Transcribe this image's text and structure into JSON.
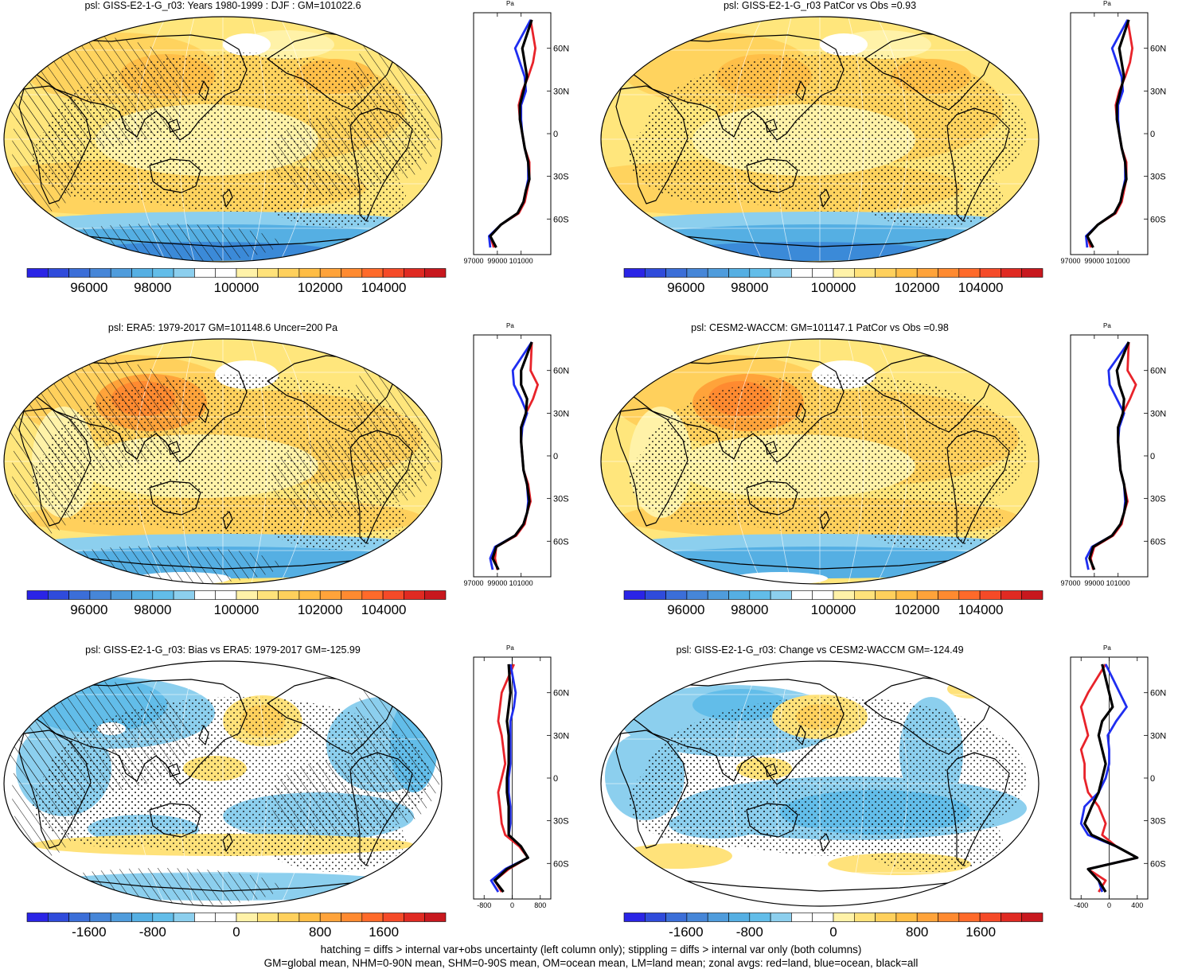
{
  "colors": {
    "abs_scale": [
      "#2a24e6",
      "#2f4bdb",
      "#3b6ed8",
      "#4686d8",
      "#4f9cdc",
      "#55afe3",
      "#62bde9",
      "#8ccfee",
      "#ffffff",
      "#ffffff",
      "#fff2a8",
      "#ffe27a",
      "#ffd05c",
      "#ffbd45",
      "#ffa33a",
      "#ff8a30",
      "#ff6a2a",
      "#f54a28",
      "#e02a22",
      "#c8181e"
    ],
    "diff_scale": [
      "#2a24e6",
      "#2f4bdb",
      "#3b6ed8",
      "#4686d8",
      "#4f9cdc",
      "#55afe3",
      "#62bde9",
      "#8ccfee",
      "#ffffff",
      "#ffffff",
      "#fff2a8",
      "#ffe27a",
      "#ffd05c",
      "#ffbd45",
      "#ffa33a",
      "#ff8a30",
      "#ff6a2a",
      "#f54a28",
      "#e02a22",
      "#c8181e"
    ],
    "land": "#e8232a",
    "ocean": "#1f2ef0",
    "all": "#000000"
  },
  "panels": [
    {
      "title": "psl: GISS-E2-1-G_r03: Years 1980-1999 : DJF : GM=101022.6",
      "map_style": "abs",
      "hatching": true,
      "colorbar": {
        "scale": "abs",
        "labels": [
          "96000",
          "98000",
          "100000",
          "102000",
          "104000"
        ]
      },
      "zonal": {
        "unit": "Pa",
        "xticks": [
          "97000",
          "99000",
          "101000"
        ],
        "yticks": [
          "60N",
          "30N",
          "0",
          "30S",
          "60S"
        ]
      }
    },
    {
      "title": "psl: GISS-E2-1-G_r03 PatCor vs Obs =0.93",
      "map_style": "abs",
      "hatching": false,
      "colorbar": {
        "scale": "abs",
        "labels": [
          "96000",
          "98000",
          "100000",
          "102000",
          "104000"
        ]
      },
      "zonal": {
        "unit": "Pa",
        "xticks": [
          "97000",
          "99000",
          "101000"
        ],
        "yticks": [
          "60N",
          "30N",
          "0",
          "30S",
          "60S"
        ]
      }
    },
    {
      "title": "psl: ERA5: 1979-2017 GM=101148.6 Uncer=200 Pa",
      "map_style": "abs_obs",
      "hatching": true,
      "colorbar": {
        "scale": "abs",
        "labels": [
          "96000",
          "98000",
          "100000",
          "102000",
          "104000"
        ]
      },
      "zonal": {
        "unit": "Pa",
        "xticks": [
          "97000",
          "99000",
          "101000"
        ],
        "yticks": [
          "60N",
          "30N",
          "0",
          "30S",
          "60S"
        ]
      }
    },
    {
      "title": "psl: CESM2-WACCM: GM=101147.1 PatCor vs Obs =0.98",
      "map_style": "abs_obs",
      "hatching": false,
      "colorbar": {
        "scale": "abs",
        "labels": [
          "96000",
          "98000",
          "100000",
          "102000",
          "104000"
        ]
      },
      "zonal": {
        "unit": "Pa",
        "xticks": [
          "97000",
          "99000",
          "101000"
        ],
        "yticks": [
          "60N",
          "30N",
          "0",
          "30S",
          "60S"
        ]
      }
    },
    {
      "title": "psl: GISS-E2-1-G_r03: Bias vs ERA5: 1979-2017 GM=-125.99",
      "map_style": "diff",
      "hatching": true,
      "colorbar": {
        "scale": "diff",
        "labels": [
          "-1600",
          "-800",
          "0",
          "800",
          "1600"
        ]
      },
      "zonal": {
        "unit": "Pa",
        "xticks": [
          "-800",
          "0",
          "800"
        ],
        "yticks": [
          "60N",
          "30N",
          "0",
          "30S",
          "60S"
        ]
      }
    },
    {
      "title": "psl: GISS-E2-1-G_r03: Change vs CESM2-WACCM GM=-124.49",
      "map_style": "diff2",
      "hatching": false,
      "colorbar": {
        "scale": "diff",
        "labels": [
          "-1600",
          "-800",
          "0",
          "800",
          "1600"
        ]
      },
      "zonal": {
        "unit": "Pa",
        "xticks": [
          "-400",
          "0",
          "400"
        ],
        "yticks": [
          "60N",
          "30N",
          "0",
          "30S",
          "60S"
        ]
      }
    }
  ],
  "chart_data": [
    {
      "type": "line",
      "title": "psl: GISS-E2-1-G_r03: Years 1980-1999 : DJF : GM=101022.6",
      "xlabel": "Pa",
      "xlim": [
        97000,
        103500
      ],
      "ylim": [
        -85,
        85
      ],
      "series": [
        {
          "name": "land",
          "color": "#e8232a",
          "x": [
            98700,
            98400,
            99300,
            100800,
            101300,
            101500,
            101700,
            101700,
            101300,
            101100,
            100900,
            100800,
            101100,
            101600,
            102000,
            102200,
            101800
          ],
          "y": [
            -80,
            -72,
            -64,
            -56,
            -48,
            -40,
            -32,
            -20,
            -10,
            0,
            10,
            20,
            30,
            40,
            50,
            60,
            80
          ]
        },
        {
          "name": "ocean",
          "color": "#1f2ef0",
          "x": [
            98400,
            98300,
            99300,
            100700,
            101200,
            101400,
            101600,
            101600,
            101300,
            101100,
            101000,
            101000,
            101400,
            101300,
            100900,
            100500,
            101800
          ],
          "y": [
            -80,
            -72,
            -64,
            -56,
            -48,
            -40,
            -32,
            -20,
            -10,
            0,
            10,
            20,
            30,
            40,
            50,
            60,
            80
          ]
        },
        {
          "name": "all",
          "color": "#000000",
          "x": [
            98900,
            98400,
            99300,
            100700,
            101200,
            101400,
            101700,
            101600,
            101300,
            101100,
            100900,
            100900,
            101200,
            101500,
            101300,
            101100,
            101900
          ],
          "y": [
            -80,
            -72,
            -64,
            -56,
            -48,
            -40,
            -32,
            -20,
            -10,
            0,
            10,
            20,
            30,
            40,
            50,
            60,
            80
          ]
        }
      ]
    },
    {
      "type": "line",
      "title": "psl: GISS-E2-1-G_r03 PatCor vs Obs =0.93",
      "xlabel": "Pa",
      "xlim": [
        97000,
        103500
      ],
      "ylim": [
        -85,
        85
      ],
      "series": [
        {
          "name": "land",
          "color": "#e8232a",
          "x": [
            98700,
            98400,
            99300,
            100800,
            101300,
            101500,
            101700,
            101700,
            101300,
            101100,
            100900,
            100800,
            101100,
            101600,
            102000,
            102200,
            101800
          ],
          "y": [
            -80,
            -72,
            -64,
            -56,
            -48,
            -40,
            -32,
            -20,
            -10,
            0,
            10,
            20,
            30,
            40,
            50,
            60,
            80
          ]
        },
        {
          "name": "ocean",
          "color": "#1f2ef0",
          "x": [
            98400,
            98300,
            99300,
            100700,
            101200,
            101400,
            101600,
            101600,
            101300,
            101100,
            101000,
            101000,
            101400,
            101300,
            100900,
            100500,
            101800
          ],
          "y": [
            -80,
            -72,
            -64,
            -56,
            -48,
            -40,
            -32,
            -20,
            -10,
            0,
            10,
            20,
            30,
            40,
            50,
            60,
            80
          ]
        },
        {
          "name": "all",
          "color": "#000000",
          "x": [
            98900,
            98400,
            99300,
            100700,
            101200,
            101400,
            101700,
            101600,
            101300,
            101100,
            100900,
            100900,
            101200,
            101500,
            101300,
            101100,
            101900
          ],
          "y": [
            -80,
            -72,
            -64,
            -56,
            -48,
            -40,
            -32,
            -20,
            -10,
            0,
            10,
            20,
            30,
            40,
            50,
            60,
            80
          ]
        }
      ]
    },
    {
      "type": "line",
      "title": "psl: ERA5: 1979-2017 GM=101148.6 Uncer=200 Pa",
      "xlabel": "Pa",
      "xlim": [
        97000,
        103500
      ],
      "ylim": [
        -85,
        85
      ],
      "series": [
        {
          "name": "land",
          "color": "#e8232a",
          "x": [
            99000,
            98800,
            98900,
            100600,
            101300,
            101500,
            101800,
            101600,
            101200,
            101100,
            101000,
            101000,
            101400,
            102000,
            102400,
            101800,
            101900
          ],
          "y": [
            -80,
            -72,
            -64,
            -56,
            -48,
            -40,
            -32,
            -20,
            -10,
            0,
            10,
            20,
            30,
            40,
            50,
            60,
            80
          ]
        },
        {
          "name": "ocean",
          "color": "#1f2ef0",
          "x": [
            98600,
            98400,
            98800,
            100500,
            101200,
            101500,
            101600,
            101500,
            101200,
            101100,
            101000,
            101100,
            101500,
            101000,
            100400,
            100300,
            101900
          ],
          "y": [
            -80,
            -72,
            -64,
            -56,
            -48,
            -40,
            -32,
            -20,
            -10,
            0,
            10,
            20,
            30,
            40,
            50,
            60,
            80
          ]
        },
        {
          "name": "all",
          "color": "#000000",
          "x": [
            99100,
            98600,
            98900,
            100500,
            101200,
            101500,
            101700,
            101500,
            101200,
            101100,
            101000,
            101000,
            101400,
            101500,
            101000,
            101000,
            101900
          ],
          "y": [
            -80,
            -72,
            -64,
            -56,
            -48,
            -40,
            -32,
            -20,
            -10,
            0,
            10,
            20,
            30,
            40,
            50,
            60,
            80
          ]
        }
      ]
    },
    {
      "type": "line",
      "title": "psl: CESM2-WACCM: GM=101147.1 PatCor vs Obs =0.98",
      "xlabel": "Pa",
      "xlim": [
        97000,
        103500
      ],
      "ylim": [
        -85,
        85
      ],
      "series": [
        {
          "name": "land",
          "color": "#e8232a",
          "x": [
            98900,
            98700,
            99000,
            100600,
            101300,
            101500,
            101800,
            101500,
            101200,
            101100,
            101000,
            101000,
            101400,
            102000,
            102500,
            101800,
            101900
          ],
          "y": [
            -80,
            -72,
            -64,
            -56,
            -48,
            -40,
            -32,
            -20,
            -10,
            0,
            10,
            20,
            30,
            40,
            50,
            60,
            80
          ]
        },
        {
          "name": "ocean",
          "color": "#1f2ef0",
          "x": [
            98500,
            98300,
            98800,
            100500,
            101200,
            101500,
            101600,
            101500,
            101200,
            101100,
            101000,
            101100,
            101500,
            100900,
            100300,
            100200,
            101900
          ],
          "y": [
            -80,
            -72,
            -64,
            -56,
            -48,
            -40,
            -32,
            -20,
            -10,
            0,
            10,
            20,
            30,
            40,
            50,
            60,
            80
          ]
        },
        {
          "name": "all",
          "color": "#000000",
          "x": [
            99000,
            98600,
            98900,
            100500,
            101200,
            101500,
            101700,
            101500,
            101200,
            101100,
            101000,
            101000,
            101400,
            101500,
            101100,
            100900,
            101900
          ],
          "y": [
            -80,
            -72,
            -64,
            -56,
            -48,
            -40,
            -32,
            -20,
            -10,
            0,
            10,
            20,
            30,
            40,
            50,
            60,
            80
          ]
        }
      ]
    },
    {
      "type": "line",
      "title": "psl: GISS-E2-1-G_r03: Bias vs ERA5: 1979-2017 GM=-125.99",
      "xlabel": "Pa",
      "xlim": [
        -1100,
        1100
      ],
      "ylim": [
        -85,
        85
      ],
      "series": [
        {
          "name": "land",
          "color": "#e8232a",
          "x": [
            -300,
            -500,
            -100,
            450,
            200,
            -200,
            -300,
            -350,
            -400,
            -300,
            -200,
            -250,
            -300,
            -400,
            -350,
            -300,
            50
          ],
          "y": [
            -80,
            -72,
            -64,
            -56,
            -48,
            -40,
            -32,
            -20,
            -10,
            0,
            10,
            20,
            30,
            40,
            50,
            60,
            80
          ]
        },
        {
          "name": "ocean",
          "color": "#1f2ef0",
          "x": [
            -400,
            -600,
            -200,
            450,
            250,
            -100,
            -50,
            -50,
            -100,
            -100,
            -50,
            -50,
            -50,
            -50,
            50,
            100,
            -50
          ],
          "y": [
            -80,
            -72,
            -64,
            -56,
            -48,
            -40,
            -32,
            -20,
            -10,
            0,
            10,
            20,
            30,
            40,
            50,
            60,
            80
          ]
        },
        {
          "name": "all",
          "color": "#000000",
          "x": [
            -250,
            -500,
            -150,
            450,
            250,
            -100,
            -100,
            -100,
            -150,
            -150,
            -100,
            -100,
            -100,
            -150,
            -100,
            -50,
            -100
          ],
          "y": [
            -80,
            -72,
            -64,
            -56,
            -48,
            -40,
            -32,
            -20,
            -10,
            0,
            10,
            20,
            30,
            40,
            50,
            60,
            80
          ]
        }
      ]
    },
    {
      "type": "line",
      "title": "psl: GISS-E2-1-G_r03: Change vs CESM2-WACCM GM=-124.49",
      "xlabel": "Pa",
      "xlim": [
        -550,
        550
      ],
      "ylim": [
        -85,
        85
      ],
      "series": [
        {
          "name": "land",
          "color": "#e8232a",
          "x": [
            -150,
            -50,
            -300,
            400,
            100,
            -100,
            -50,
            -150,
            -300,
            -350,
            -350,
            -400,
            -300,
            -350,
            -400,
            -300,
            -50
          ],
          "y": [
            -80,
            -72,
            -64,
            -56,
            -48,
            -40,
            -32,
            -20,
            -10,
            0,
            10,
            20,
            30,
            40,
            50,
            60,
            80
          ]
        },
        {
          "name": "ocean",
          "color": "#1f2ef0",
          "x": [
            -100,
            -150,
            -300,
            400,
            100,
            -300,
            -400,
            -350,
            -150,
            -50,
            0,
            0,
            -20,
            100,
            250,
            150,
            -50
          ],
          "y": [
            -80,
            -72,
            -64,
            -56,
            -48,
            -40,
            -32,
            -20,
            -10,
            0,
            10,
            20,
            30,
            40,
            50,
            60,
            80
          ]
        },
        {
          "name": "all",
          "color": "#000000",
          "x": [
            -50,
            -150,
            -300,
            400,
            100,
            -250,
            -350,
            -250,
            -150,
            -100,
            -50,
            -100,
            -150,
            -100,
            50,
            0,
            -100
          ],
          "y": [
            -80,
            -72,
            -64,
            -56,
            -48,
            -40,
            -32,
            -20,
            -10,
            0,
            10,
            20,
            30,
            40,
            50,
            60,
            80
          ]
        }
      ]
    }
  ],
  "footer": {
    "line1": "hatching = diffs > internal var+obs uncertainty (left column only); stippling = diffs > internal var only (both columns)",
    "line2": "GM=global mean, NHM=0-90N mean, SHM=0-90S mean, OM=ocean mean, LM=land mean; zonal avgs: red=land, blue=ocean, black=all"
  }
}
